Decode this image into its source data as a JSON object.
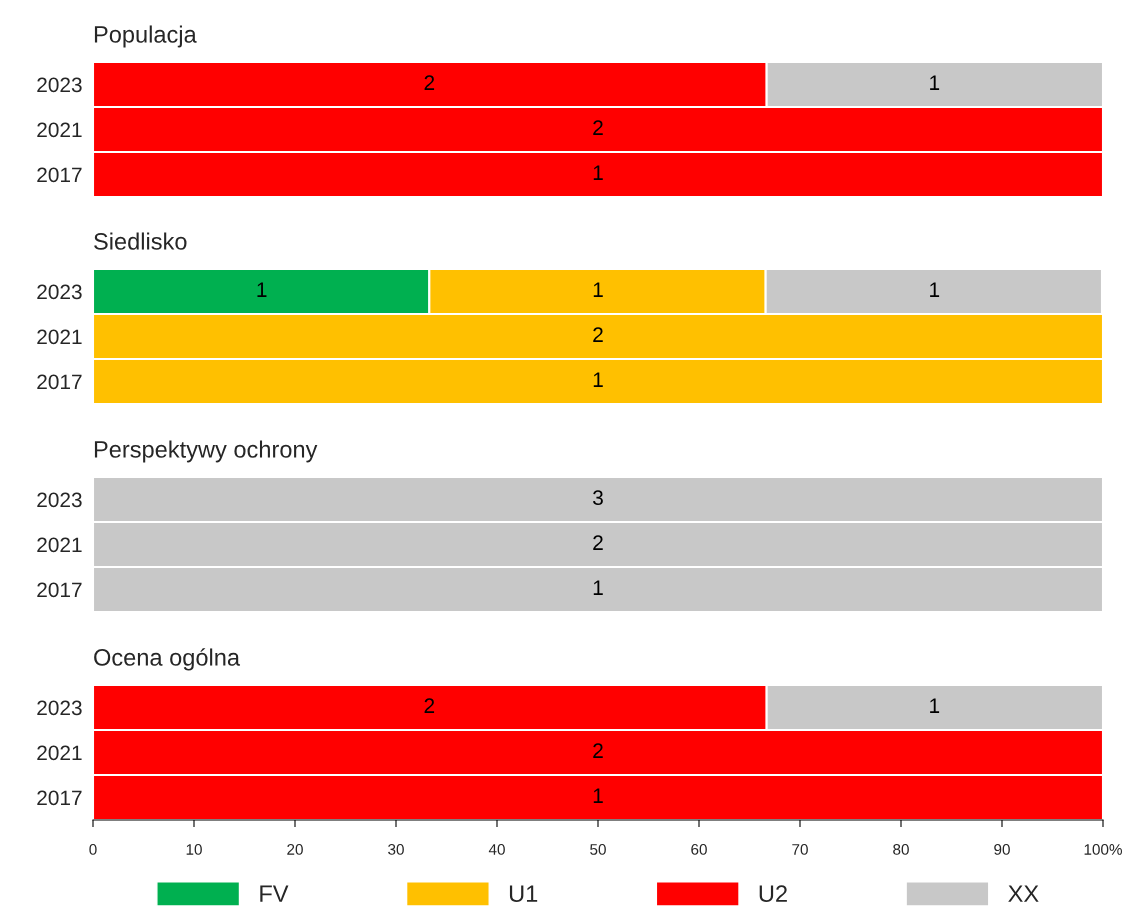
{
  "chart_data": [
    {
      "type": "bar",
      "orientation": "horizontal",
      "stacked": true,
      "title": "Populacja",
      "categories": [
        "2023",
        "2021",
        "2017"
      ],
      "xlim": [
        0,
        100
      ],
      "tick_labels": "y",
      "series": [
        {
          "color": "#ff0000",
          "values": [
            66.7,
            100,
            100
          ]
        },
        {
          "color": "#c8c8c8",
          "values": [
            33.3,
            null,
            null
          ]
        }
      ],
      "annotations": [
        {
          "text": "2",
          "x": 33.3,
          "y": "2023"
        },
        {
          "text": "1",
          "x": 83.3,
          "y": "2023"
        },
        {
          "text": "2",
          "x": 50,
          "y": "2021"
        },
        {
          "text": "1",
          "x": 50,
          "y": "2017"
        }
      ]
    },
    {
      "type": "bar",
      "orientation": "horizontal",
      "stacked": true,
      "title": "Siedlisko",
      "categories": [
        "2023",
        "2021",
        "2017"
      ],
      "xlim": [
        0,
        100
      ],
      "tick_labels": "y",
      "series": [
        {
          "color": "#00b050",
          "values": [
            33.3,
            null,
            null
          ]
        },
        {
          "color": "#ffc000",
          "values": [
            33.3,
            100,
            100
          ]
        },
        {
          "color": "#c8c8c8",
          "values": [
            33.3,
            null,
            null
          ]
        }
      ],
      "annotations": [
        {
          "text": "1",
          "x": 16.7,
          "y": "2023"
        },
        {
          "text": "1",
          "x": 50,
          "y": "2023"
        },
        {
          "text": "1",
          "x": 83.3,
          "y": "2023"
        },
        {
          "text": "2",
          "x": 50,
          "y": "2021"
        },
        {
          "text": "1",
          "x": 50,
          "y": "2017"
        }
      ]
    },
    {
      "type": "bar",
      "orientation": "horizontal",
      "stacked": true,
      "title": "Perspektywy ochrony",
      "categories": [
        "2023",
        "2021",
        "2017"
      ],
      "xlim": [
        0,
        100
      ],
      "tick_labels": "y",
      "series": [
        {
          "color": "#c8c8c8",
          "values": [
            100,
            100,
            100
          ]
        }
      ],
      "annotations": [
        {
          "text": "3",
          "x": 50,
          "y": "2023"
        },
        {
          "text": "2",
          "x": 50,
          "y": "2021"
        },
        {
          "text": "1",
          "x": 50,
          "y": "2017"
        }
      ]
    },
    {
      "type": "bar",
      "orientation": "horizontal",
      "stacked": true,
      "title": "Ocena ogólna",
      "categories": [
        "2023",
        "2021",
        "2017"
      ],
      "xlim": [
        0,
        100
      ],
      "legend": "bottom",
      "xticks": [
        0,
        10,
        20,
        30,
        40,
        50,
        60,
        70,
        80,
        90,
        {
          "value": 100,
          "label": "100%"
        }
      ],
      "series": [
        {
          "name": "FV",
          "color": "#00b050",
          "values": [
            null,
            null,
            null
          ]
        },
        {
          "name": "U1",
          "color": "#ffc000",
          "values": [
            null,
            null,
            null
          ]
        },
        {
          "name": "U2",
          "color": "#ff0000",
          "values": [
            66.7,
            100,
            100
          ]
        },
        {
          "name": "XX",
          "color": "#c8c8c8",
          "values": [
            33.3,
            null,
            null
          ]
        }
      ],
      "annotations": [
        {
          "text": "2",
          "x": 33.3,
          "y": "2023"
        },
        {
          "text": "1",
          "x": 83.3,
          "y": "2023"
        },
        {
          "text": "2",
          "x": 50,
          "y": "2021"
        },
        {
          "text": "1",
          "x": 50,
          "y": "2017"
        }
      ]
    }
  ]
}
